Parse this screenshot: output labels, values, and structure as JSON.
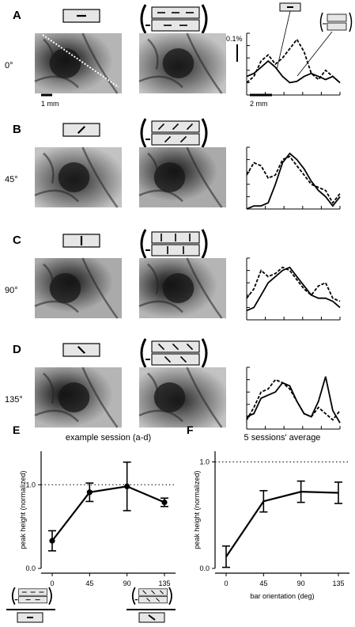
{
  "panels": [
    {
      "letter": "A",
      "angle_label": "0°",
      "angle": 0,
      "scale_left": "1 mm",
      "scale_right": "2 mm",
      "ylabel": "0.1%",
      "solid": [
        0.3,
        0.35,
        0.45,
        0.55,
        0.45,
        0.3,
        0.2,
        0.22,
        0.3,
        0.35,
        0.3,
        0.25,
        0.3,
        0.2
      ],
      "dashed": [
        0.2,
        0.3,
        0.55,
        0.65,
        0.5,
        0.6,
        0.75,
        0.9,
        0.7,
        0.35,
        0.25,
        0.4,
        0.3,
        0.2
      ]
    },
    {
      "letter": "B",
      "angle_label": "45°",
      "angle": 45,
      "solid": [
        0.0,
        0.05,
        0.05,
        0.1,
        0.4,
        0.75,
        0.9,
        0.8,
        0.65,
        0.45,
        0.3,
        0.2,
        0.05,
        0.2
      ],
      "dashed": [
        0.55,
        0.75,
        0.7,
        0.5,
        0.55,
        0.8,
        0.85,
        0.7,
        0.55,
        0.4,
        0.35,
        0.3,
        0.1,
        0.25
      ]
    },
    {
      "letter": "C",
      "angle_label": "90°",
      "angle": 90,
      "solid": [
        0.15,
        0.2,
        0.4,
        0.6,
        0.7,
        0.8,
        0.85,
        0.7,
        0.55,
        0.4,
        0.35,
        0.35,
        0.3,
        0.2
      ],
      "dashed": [
        0.35,
        0.5,
        0.8,
        0.7,
        0.75,
        0.85,
        0.8,
        0.65,
        0.5,
        0.4,
        0.55,
        0.6,
        0.35,
        0.3
      ]
    },
    {
      "letter": "D",
      "angle_label": "135°",
      "angle": 135,
      "solid": [
        0.2,
        0.25,
        0.5,
        0.55,
        0.6,
        0.75,
        0.7,
        0.45,
        0.25,
        0.2,
        0.45,
        0.85,
        0.3,
        0.1
      ],
      "dashed": [
        0.15,
        0.35,
        0.6,
        0.65,
        0.8,
        0.75,
        0.65,
        0.45,
        0.25,
        0.2,
        0.35,
        0.25,
        0.15,
        0.3
      ]
    }
  ],
  "chart_data": [
    {
      "type": "line",
      "panel_letter": "E",
      "title": "example session (a-d)",
      "xlabel": "",
      "ylabel": "peak height (normalized)",
      "x": [
        0,
        45,
        90,
        135
      ],
      "y": [
        0.33,
        0.91,
        0.98,
        0.79
      ],
      "err": [
        0.12,
        0.11,
        0.29,
        0.05
      ],
      "ylim": [
        0,
        1.4
      ],
      "yticks": [
        "0.0",
        "1.0"
      ],
      "ref_line": 1.0
    },
    {
      "type": "line",
      "panel_letter": "F",
      "title": "5 sessions' average",
      "xlabel": "bar orientation (deg)",
      "ylabel": "peak height (normalized)",
      "x": [
        0,
        45,
        90,
        135
      ],
      "y": [
        0.11,
        0.63,
        0.72,
        0.71
      ],
      "err": [
        0.1,
        0.1,
        0.1,
        0.1
      ],
      "ylim": [
        0,
        1.1
      ],
      "yticks": [
        "0.0",
        "1.0"
      ],
      "ref_line": 1.0
    }
  ]
}
